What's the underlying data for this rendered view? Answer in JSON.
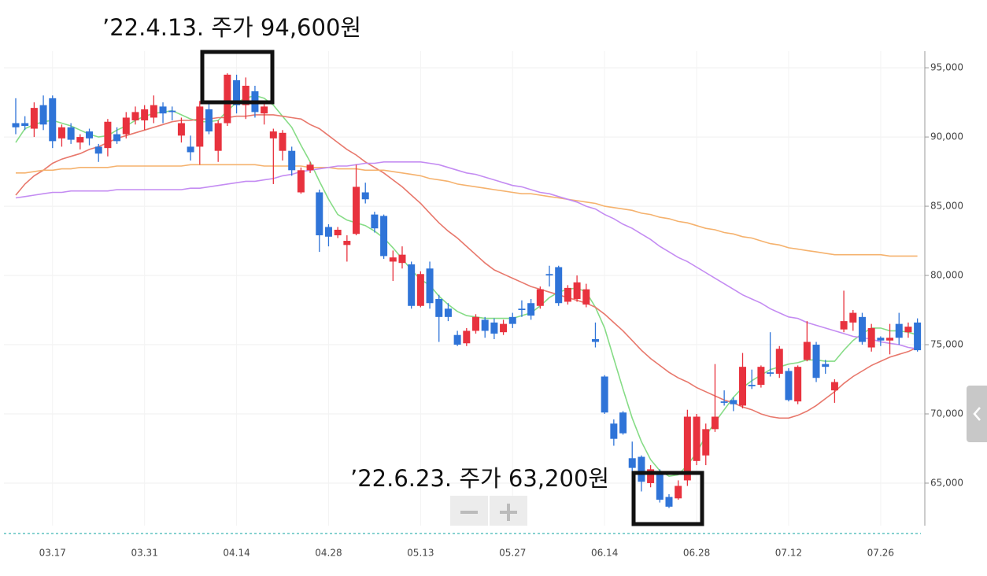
{
  "chart_data": {
    "type": "candlestick",
    "annotations": [
      "’22.4.13. 주가 94,600원",
      "’22.6.23. 주가 63,200원"
    ],
    "categories": [
      null,
      null,
      null,
      null,
      "03.17",
      null,
      null,
      null,
      null,
      null,
      null,
      null,
      null,
      null,
      "03.31",
      null,
      null,
      null,
      null,
      null,
      null,
      null,
      null,
      null,
      "04.14",
      null,
      null,
      null,
      null,
      null,
      null,
      null,
      null,
      null,
      "04.28",
      null,
      null,
      null,
      null,
      null,
      null,
      null,
      null,
      null,
      "05.13",
      null,
      null,
      null,
      null,
      null,
      null,
      null,
      null,
      null,
      "05.27",
      null,
      null,
      null,
      null,
      null,
      null,
      null,
      null,
      null,
      "06.14",
      null,
      null,
      null,
      null,
      null,
      null,
      null,
      null,
      null,
      "06.28",
      null,
      null,
      null,
      null,
      null,
      null,
      null,
      null,
      null,
      "07.12",
      null,
      null,
      null,
      null,
      null,
      null,
      null,
      null,
      null,
      "07.26",
      null,
      null,
      null,
      null
    ],
    "open": [
      91000,
      91000,
      90600,
      92300,
      92800,
      89900,
      90700,
      89600,
      90400,
      89300,
      89200,
      90200,
      90200,
      91200,
      91200,
      91400,
      92200,
      91900,
      90100,
      89300,
      89300,
      92000,
      89000,
      91000,
      94100,
      92300,
      93300,
      91700,
      89900,
      89000,
      89000,
      86000,
      87600,
      86000,
      83500,
      82900,
      82200,
      83000,
      86000,
      84400,
      84300,
      81000,
      80900,
      80800,
      77800,
      80500,
      78300,
      77600,
      75700,
      75100,
      76000,
      76800,
      76600,
      75900,
      77000,
      77600,
      78000,
      77800,
      80100,
      80600,
      78100,
      78300,
      77900,
      75400,
      72700,
      69300,
      70100,
      66800,
      66900,
      65000,
      65600,
      64000,
      63900,
      65200,
      66600,
      67000,
      68900,
      70900,
      71000,
      70600,
      72100,
      72100,
      73000,
      72900,
      73100,
      70900,
      73900,
      75000,
      73600,
      71700,
      76100,
      76600,
      77000,
      74800,
      75500,
      75300,
      76500,
      75900,
      76600
    ],
    "high": [
      92800,
      91500,
      92500,
      93000,
      93000,
      90900,
      91000,
      90200,
      90600,
      89500,
      91300,
      90700,
      91800,
      92200,
      92300,
      93000,
      92500,
      92200,
      91400,
      90100,
      92600,
      92600,
      91200,
      94600,
      94500,
      94300,
      93700,
      92600,
      90600,
      90500,
      89300,
      87800,
      88200,
      86200,
      83700,
      83500,
      82900,
      88000,
      86700,
      84600,
      84400,
      81800,
      82100,
      81000,
      80300,
      81000,
      78600,
      78000,
      76000,
      76200,
      77200,
      77000,
      76900,
      76800,
      77300,
      78200,
      78300,
      79200,
      80700,
      80700,
      79300,
      80000,
      79400,
      76600,
      72800,
      69600,
      70200,
      68000,
      67000,
      66300,
      66000,
      64200,
      65200,
      70300,
      70000,
      69300,
      73600,
      71700,
      71200,
      74400,
      73200,
      73500,
      75900,
      74900,
      73300,
      73500,
      76700,
      75200,
      73900,
      72500,
      78900,
      77500,
      77300,
      76500,
      75600,
      76500,
      77300,
      76600,
      76900
    ],
    "low": [
      90200,
      90500,
      90000,
      90500,
      89200,
      89300,
      89500,
      89100,
      89400,
      88200,
      88600,
      89500,
      89900,
      90900,
      90500,
      91000,
      91000,
      91200,
      89600,
      88300,
      88000,
      90200,
      88200,
      90800,
      91700,
      91300,
      91400,
      90900,
      86600,
      88300,
      87200,
      85900,
      87400,
      81700,
      82100,
      82700,
      81000,
      82900,
      85200,
      83100,
      81200,
      79600,
      80500,
      77600,
      77700,
      77600,
      75200,
      76700,
      74900,
      74900,
      75800,
      75500,
      75400,
      75700,
      76200,
      77000,
      76800,
      77600,
      79200,
      77800,
      77900,
      78100,
      77700,
      74800,
      70000,
      67700,
      68500,
      65800,
      64400,
      64700,
      63600,
      63200,
      63800,
      64800,
      66300,
      66300,
      68700,
      70600,
      70200,
      70400,
      71800,
      71900,
      72700,
      72600,
      70900,
      70700,
      73800,
      72300,
      72900,
      70800,
      75900,
      76000,
      75000,
      74500,
      74900,
      74300,
      75000,
      75500,
      74500
    ],
    "close": [
      90700,
      90800,
      92100,
      90900,
      89700,
      90700,
      89800,
      90000,
      89900,
      88800,
      91100,
      89700,
      91400,
      91800,
      92000,
      92300,
      91700,
      91800,
      91000,
      88900,
      92200,
      90400,
      91000,
      94500,
      92300,
      93700,
      91800,
      92200,
      90400,
      90300,
      87600,
      87600,
      88000,
      82900,
      82800,
      83300,
      82500,
      86400,
      85500,
      83400,
      81400,
      81300,
      81500,
      77800,
      80100,
      78000,
      77000,
      77000,
      75000,
      76000,
      77000,
      76000,
      75800,
      76500,
      76500,
      77500,
      77100,
      79000,
      80000,
      78000,
      79100,
      79500,
      79000,
      75200,
      70100,
      68200,
      68600,
      66100,
      65100,
      66000,
      63800,
      63300,
      64800,
      69800,
      69800,
      68900,
      69800,
      70800,
      70700,
      73400,
      72000,
      73400,
      72900,
      74700,
      71000,
      73400,
      75200,
      72600,
      73400,
      72300,
      76700,
      77300,
      75200,
      76200,
      75300,
      75500,
      75500,
      76300,
      74600
    ],
    "up_color": "#e8323e",
    "down_color": "#2f74d8",
    "series": [
      {
        "color": "#86dc86",
        "values": [
          89600,
          90600,
          90900,
          91100,
          91200,
          91000,
          90800,
          90500,
          90200,
          90000,
          90100,
          90500,
          90800,
          91200,
          91500,
          91700,
          91800,
          91900,
          91600,
          91300,
          91100,
          91100,
          91200,
          91900,
          92500,
          92800,
          93000,
          92800,
          92300,
          91500,
          90700,
          89400,
          88200,
          86800,
          85500,
          84400,
          84000,
          83800,
          83600,
          83200,
          82700,
          82000,
          81200,
          80400,
          79700,
          79300,
          78500,
          77900,
          77400,
          77100,
          77000,
          76900,
          76900,
          76900,
          76900,
          77100,
          77300,
          77800,
          78400,
          78800,
          79000,
          79100,
          78800,
          77700,
          76200,
          74000,
          71800,
          69700,
          68000,
          66700,
          65900,
          65500,
          65600,
          66300,
          67200,
          68400,
          69400,
          70300,
          71200,
          71900,
          72400,
          72800,
          73200,
          73400,
          73600,
          73700,
          73900,
          73900,
          73800,
          73800,
          74600,
          75300,
          75800,
          76200,
          76200,
          76000,
          76000,
          75900,
          75700
        ]
      },
      {
        "color": "#e8786c",
        "values": [
          85800,
          86600,
          87200,
          87600,
          88100,
          88400,
          88600,
          88800,
          89100,
          89300,
          89600,
          89900,
          90100,
          90300,
          90500,
          90700,
          90900,
          91100,
          91200,
          91200,
          91300,
          91300,
          91400,
          91400,
          91500,
          91500,
          91600,
          91600,
          91600,
          91500,
          91400,
          91300,
          90900,
          90600,
          90100,
          89600,
          89100,
          88700,
          88200,
          87800,
          87400,
          86900,
          86400,
          85800,
          85200,
          84500,
          83800,
          83200,
          82700,
          82100,
          81500,
          80900,
          80400,
          80100,
          79800,
          79500,
          79200,
          79000,
          78800,
          78600,
          78400,
          78200,
          78000,
          77700,
          77200,
          76600,
          76000,
          75300,
          74600,
          74000,
          73500,
          73000,
          72600,
          72300,
          71900,
          71600,
          71300,
          71000,
          70800,
          70500,
          70300,
          70000,
          69800,
          69700,
          69700,
          69900,
          70200,
          70600,
          71100,
          71600,
          72200,
          72700,
          73100,
          73500,
          73800,
          74100,
          74300,
          74500,
          74800
        ]
      },
      {
        "color": "#f5b26e",
        "values": [
          87400,
          87400,
          87500,
          87600,
          87600,
          87700,
          87700,
          87800,
          87800,
          87800,
          87800,
          87900,
          87900,
          87900,
          87900,
          87900,
          87900,
          87900,
          87900,
          88000,
          88000,
          88000,
          88000,
          88000,
          88000,
          88000,
          88000,
          87900,
          87900,
          87900,
          87900,
          87900,
          87800,
          87800,
          87800,
          87700,
          87700,
          87700,
          87600,
          87600,
          87600,
          87500,
          87400,
          87300,
          87200,
          87000,
          86900,
          86800,
          86600,
          86500,
          86400,
          86300,
          86200,
          86100,
          86000,
          85900,
          85900,
          85800,
          85700,
          85600,
          85500,
          85400,
          85300,
          85200,
          85000,
          84900,
          84800,
          84700,
          84500,
          84400,
          84200,
          84100,
          83900,
          83800,
          83600,
          83400,
          83300,
          83100,
          83000,
          82800,
          82700,
          82500,
          82300,
          82200,
          82000,
          81900,
          81800,
          81700,
          81600,
          81500,
          81500,
          81500,
          81500,
          81500,
          81500,
          81400,
          81400,
          81400,
          81400
        ]
      },
      {
        "color": "#c48cf2",
        "values": [
          85600,
          85700,
          85800,
          85900,
          86000,
          86000,
          86100,
          86100,
          86100,
          86100,
          86100,
          86200,
          86200,
          86200,
          86200,
          86200,
          86200,
          86200,
          86200,
          86300,
          86300,
          86400,
          86500,
          86600,
          86700,
          86800,
          86800,
          86900,
          87000,
          87200,
          87300,
          87500,
          87600,
          87700,
          87800,
          87900,
          87900,
          88000,
          88100,
          88100,
          88200,
          88200,
          88200,
          88200,
          88200,
          88100,
          88000,
          87800,
          87600,
          87400,
          87300,
          87100,
          86900,
          86700,
          86500,
          86400,
          86200,
          86000,
          85900,
          85700,
          85500,
          85300,
          85000,
          84800,
          84400,
          84100,
          83700,
          83400,
          83000,
          82600,
          82100,
          81700,
          81300,
          81000,
          80600,
          80200,
          79800,
          79400,
          79000,
          78600,
          78300,
          78000,
          77600,
          77300,
          77000,
          76900,
          76600,
          76400,
          76200,
          76000,
          75800,
          75600,
          75500,
          75400,
          75200,
          75100,
          75000,
          74800,
          74700
        ]
      }
    ],
    "ylim": [
      62100,
      96200
    ],
    "yticks": [
      {
        "value": 65000,
        "label": "65,000"
      },
      {
        "value": 70000,
        "label": "70,000"
      },
      {
        "value": 75000,
        "label": "75,000"
      },
      {
        "value": 80000,
        "label": "80,000"
      },
      {
        "value": 85000,
        "label": "85,000"
      },
      {
        "value": 90000,
        "label": "90,000"
      },
      {
        "value": 95000,
        "label": "95,000"
      }
    ],
    "grid": true
  }
}
